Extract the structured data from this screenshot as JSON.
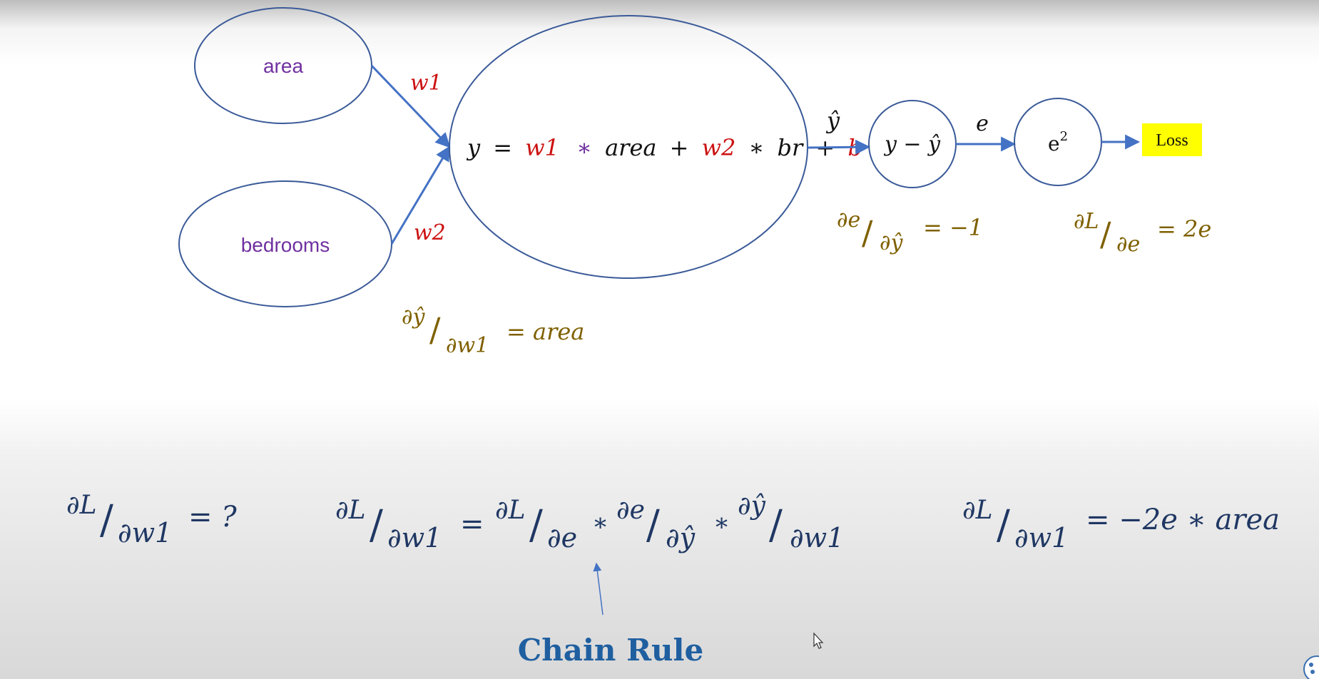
{
  "nodes": {
    "area": "area",
    "bedrooms": "bedrooms",
    "yhat_label": "ŷ",
    "error_node": "y − ŷ",
    "e_label": "e",
    "square_node_base": "e",
    "square_node_exp": "2",
    "loss": "Loss"
  },
  "weights": {
    "w1": "w1",
    "w2": "w2"
  },
  "equation": {
    "y": "y",
    "eq": "=",
    "w1": "w1",
    "times1": "∗",
    "area": "area",
    "plus1": "+",
    "w2": "w2",
    "times2": "∗",
    "br": "br",
    "plus2": "+",
    "b": "b"
  },
  "partials": {
    "de_dyhat": {
      "num": "∂e",
      "den": "∂ŷ",
      "rhs": "= −1"
    },
    "dL_de": {
      "num": "∂L",
      "den": "∂e",
      "rhs": "= 2e"
    },
    "dyhat_dw1": {
      "num": "∂ŷ",
      "den": "∂w1",
      "rhs": "= area"
    }
  },
  "bottom": {
    "question": {
      "num": "∂L",
      "den": "∂w1",
      "rhs": "= ?"
    },
    "chain": {
      "lhs_num": "∂L",
      "lhs_den": "∂w1",
      "eq": "=",
      "t1_num": "∂L",
      "t1_den": "∂e",
      "op1": "∗",
      "t2_num": "∂e",
      "t2_den": "∂ŷ",
      "op2": "∗",
      "t3_num": "∂ŷ",
      "t3_den": "∂w1"
    },
    "result": {
      "num": "∂L",
      "den": "∂w1",
      "rhs": "= −2e ∗ area"
    },
    "chain_rule_label": "Chain Rule"
  },
  "colors": {
    "node_stroke": "#3a5a98",
    "arrow": "#4472c4",
    "weight": "#cc1111",
    "purple": "#7030a0",
    "olive": "#7f6000",
    "navy": "#1f3763",
    "chain_label": "#1f5fa0",
    "loss_bg": "#ffff00"
  }
}
